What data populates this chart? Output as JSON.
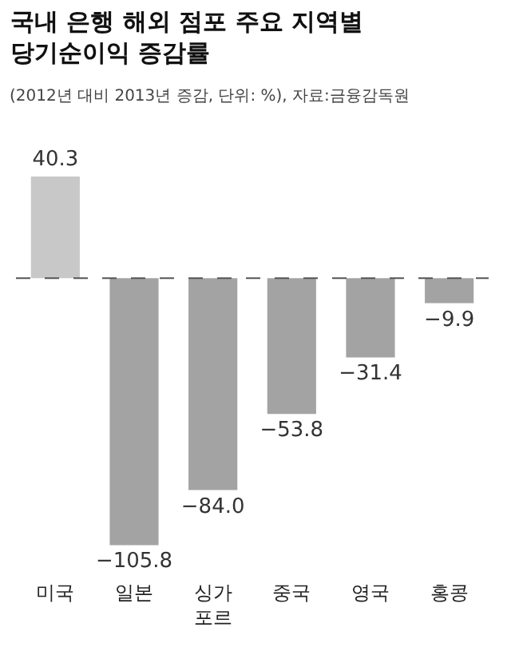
{
  "chart_data": {
    "type": "bar",
    "title": "국내 은행 해외 점포 주요 지역별 당기순이익 증감률",
    "subtitle": "(2012년 대비 2013년 증감, 단위: %), 자료:금융감독원",
    "categories": [
      "미국",
      "일본",
      "싱가포르",
      "중국",
      "영국",
      "홍콩"
    ],
    "values": [
      40.3,
      -105.8,
      -84.0,
      -53.8,
      -31.4,
      -9.9
    ],
    "colors": [
      "#c8c8c8",
      "#a3a3a3",
      "#a3a3a3",
      "#a3a3a3",
      "#a3a3a3",
      "#a3a3a3"
    ],
    "value_labels": [
      "40.3",
      "−105.8",
      "−84.0",
      "−53.8",
      "−31.4",
      "−9.9"
    ],
    "ref_lines": [
      {
        "axis": "y",
        "value": 0,
        "line_style": "dashed",
        "color": "#555555"
      }
    ],
    "grid": false
  }
}
